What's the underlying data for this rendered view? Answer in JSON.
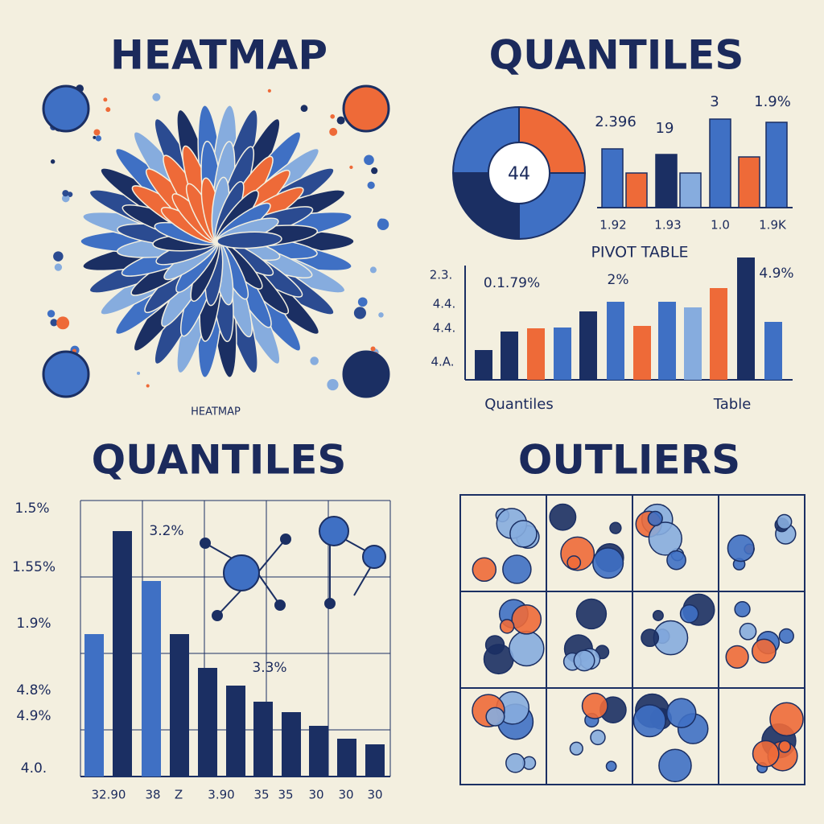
{
  "panels": [
    {
      "title": "HEATMAP",
      "caption": "HEATMAP"
    },
    {
      "title": "QUANTILES",
      "donut_label": "44",
      "top_labels": [
        "2.396",
        "19",
        "3",
        "1.9%"
      ],
      "top_axis": [
        "1.92",
        "1.93",
        "1.0",
        "1.9K"
      ],
      "subtitle": "PIVOT TABLE",
      "left_axis": [
        "2.3.",
        "4.4.",
        "4.4.",
        "4.A."
      ],
      "bar_labels": [
        "0.1.79%",
        "2%",
        "4.9%"
      ],
      "bottom_labels": [
        "Quantiles",
        "Table"
      ]
    },
    {
      "title": "QUANTILES",
      "left_axis": [
        "1.5%",
        "1.55%",
        "1.9%",
        "4.8%",
        "4.9%",
        "4.0."
      ],
      "bar_labels": [
        "3.2%",
        "3.3%"
      ],
      "bottom_labels": [
        "32.90",
        "38",
        "Z",
        "3.90",
        "35",
        "35",
        "30",
        "30",
        "30"
      ]
    },
    {
      "title": "OUTLIERS"
    }
  ]
}
